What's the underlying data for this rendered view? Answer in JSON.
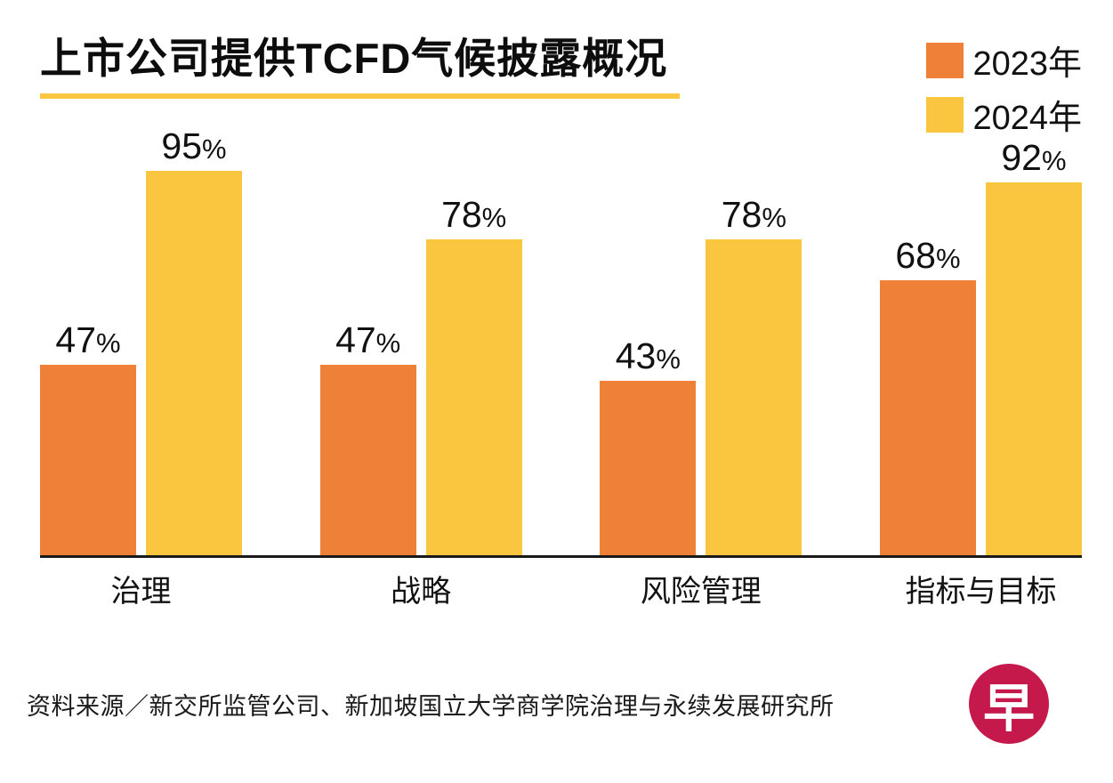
{
  "title": "上市公司提供TCFD气候披露概况",
  "legend": [
    {
      "label": "2023年",
      "color": "#ef8038"
    },
    {
      "label": "2024年",
      "color": "#fac640"
    }
  ],
  "footer": {
    "source": "资料来源／新交所监管公司、新加坡国立大学商学院治理与永续发展研究所",
    "logo_char": "早",
    "logo_color": "#c5194b"
  },
  "chart_data": {
    "type": "bar",
    "title": "上市公司提供TCFD气候披露概况",
    "categories": [
      "治理",
      "战略",
      "风险管理",
      "指标与目标"
    ],
    "series": [
      {
        "name": "2023年",
        "color": "#ef8038",
        "values": [
          47,
          47,
          43,
          68
        ]
      },
      {
        "name": "2024年",
        "color": "#fac640",
        "values": [
          95,
          78,
          78,
          92
        ]
      }
    ],
    "value_suffix": "%",
    "xlabel": "",
    "ylabel": "",
    "ylim": [
      0,
      100
    ],
    "grid": false,
    "legend_position": "top-right"
  }
}
